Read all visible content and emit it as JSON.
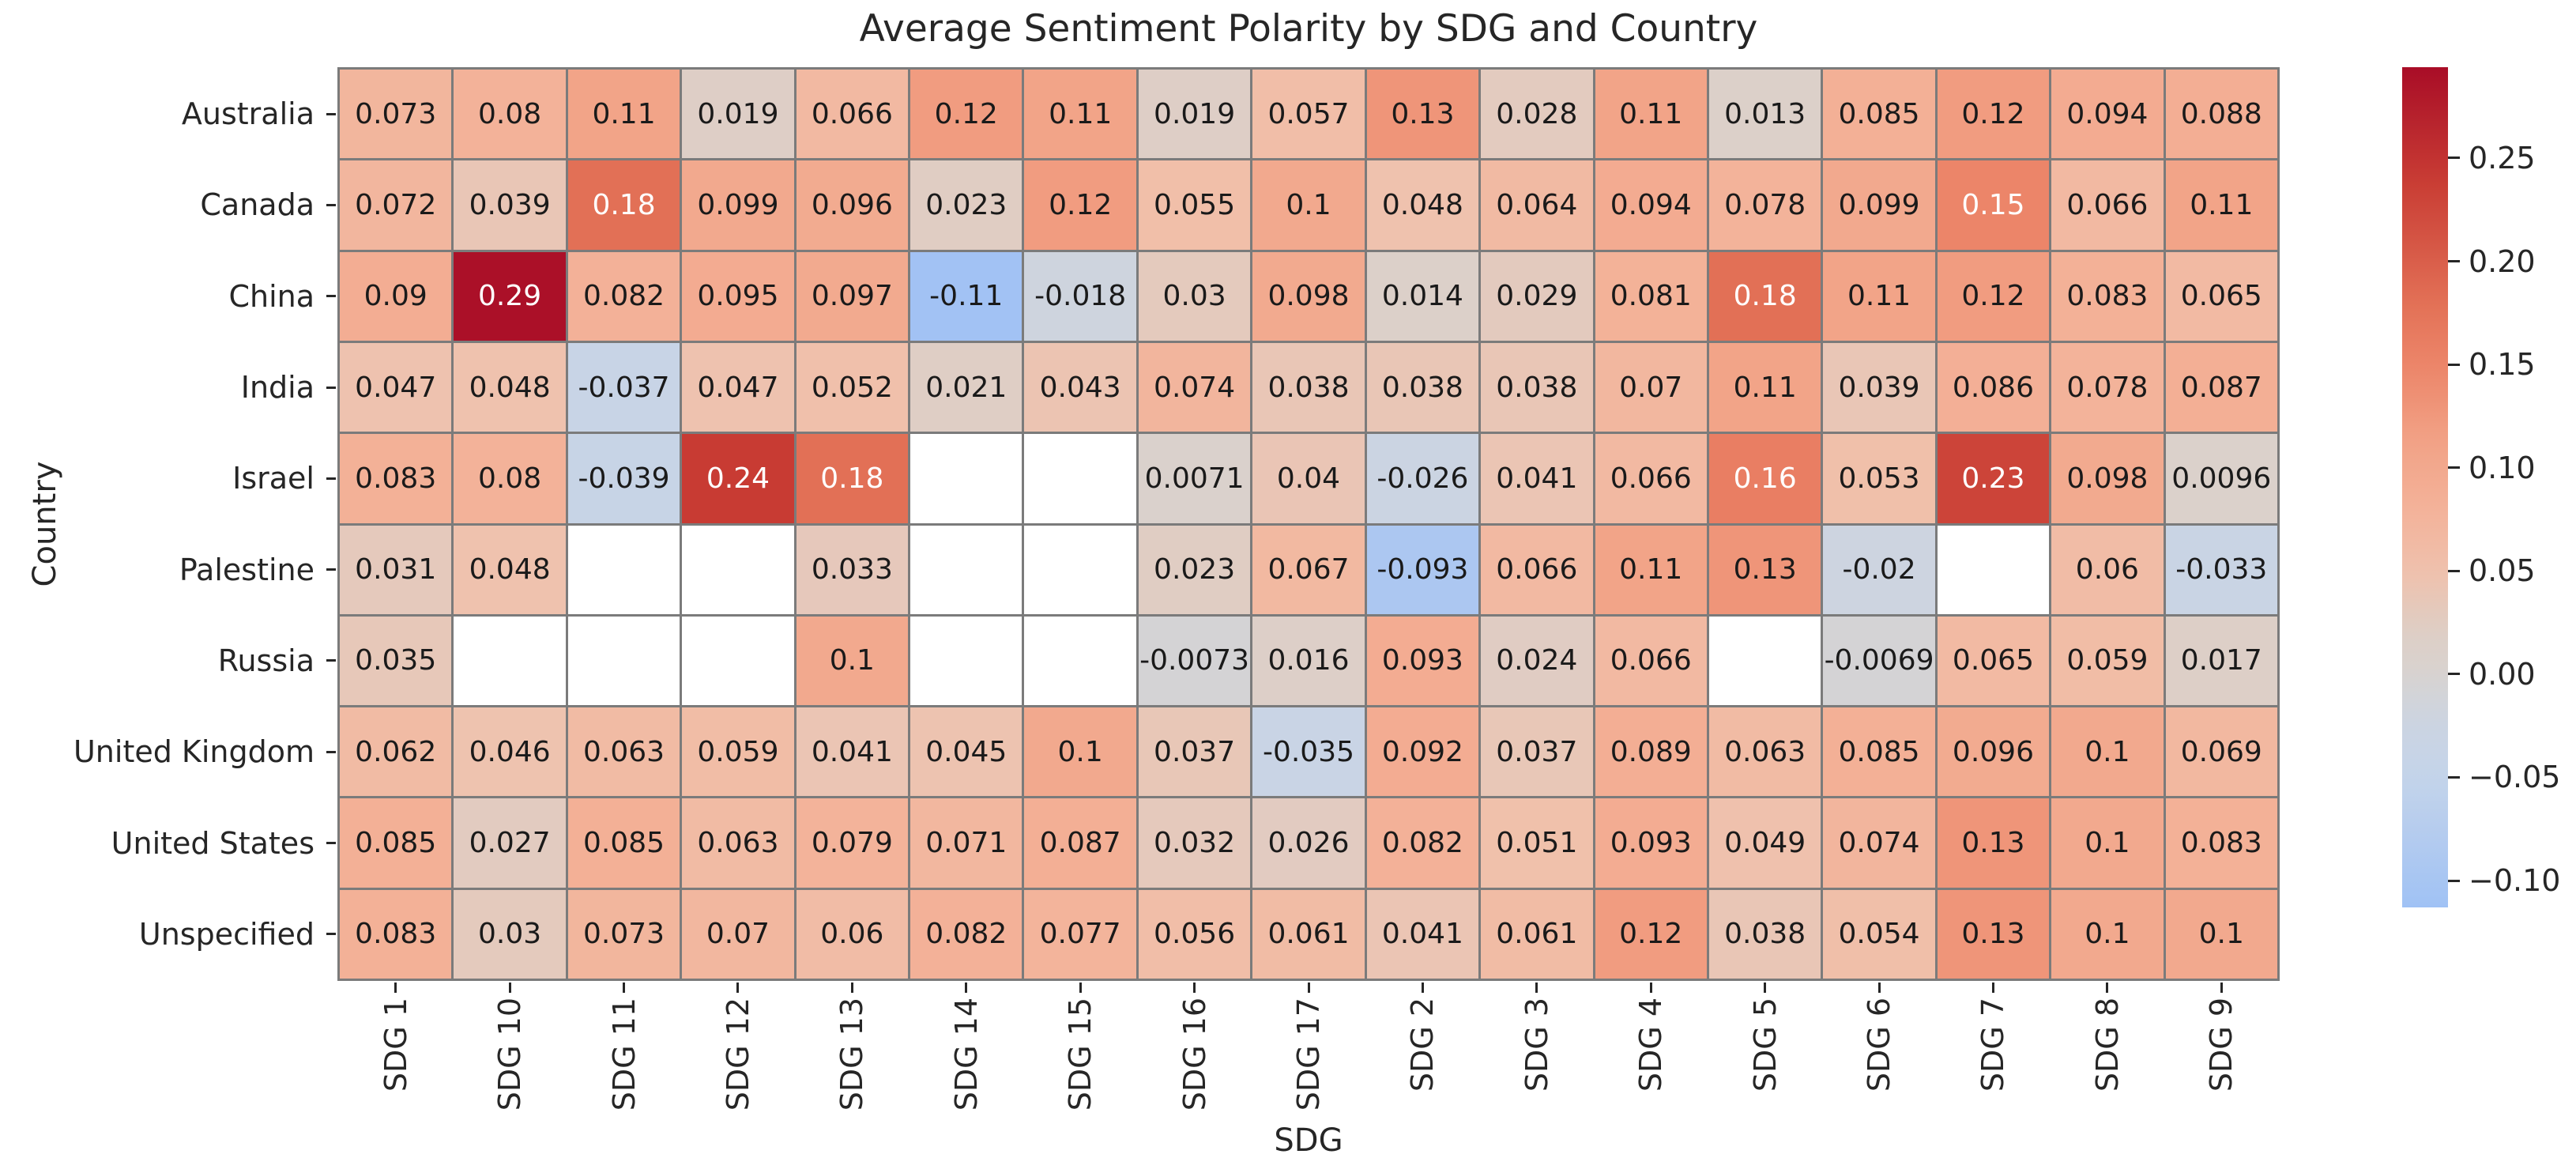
{
  "title": "Average Sentiment Polarity by SDG and Country",
  "chart_data": {
    "type": "heatmap",
    "title": "Average Sentiment Polarity by SDG and Country",
    "xlabel": "SDG",
    "ylabel": "Country",
    "legend_position": "colorbar-right",
    "grid": false,
    "x_categories": [
      "SDG 1",
      "SDG 10",
      "SDG 11",
      "SDG 12",
      "SDG 13",
      "SDG 14",
      "SDG 15",
      "SDG 16",
      "SDG 17",
      "SDG 2",
      "SDG 3",
      "SDG 4",
      "SDG 5",
      "SDG 6",
      "SDG 7",
      "SDG 8",
      "SDG 9"
    ],
    "y_categories": [
      "Australia",
      "Canada",
      "China",
      "India",
      "Israel",
      "Palestine",
      "Russia",
      "United Kingdom",
      "United States",
      "Unspecified"
    ],
    "values": [
      [
        "0.073",
        "0.08",
        "0.11",
        "0.019",
        "0.066",
        "0.12",
        "0.11",
        "0.019",
        "0.057",
        "0.13",
        "0.028",
        "0.11",
        "0.013",
        "0.085",
        "0.12",
        "0.094",
        "0.088"
      ],
      [
        "0.072",
        "0.039",
        "0.18",
        "0.099",
        "0.096",
        "0.023",
        "0.12",
        "0.055",
        "0.1",
        "0.048",
        "0.064",
        "0.094",
        "0.078",
        "0.099",
        "0.15",
        "0.066",
        "0.11"
      ],
      [
        "0.09",
        "0.29",
        "0.082",
        "0.095",
        "0.097",
        "-0.11",
        "-0.018",
        "0.03",
        "0.098",
        "0.014",
        "0.029",
        "0.081",
        "0.18",
        "0.11",
        "0.12",
        "0.083",
        "0.065"
      ],
      [
        "0.047",
        "0.048",
        "-0.037",
        "0.047",
        "0.052",
        "0.021",
        "0.043",
        "0.074",
        "0.038",
        "0.038",
        "0.038",
        "0.07",
        "0.11",
        "0.039",
        "0.086",
        "0.078",
        "0.087"
      ],
      [
        "0.083",
        "0.08",
        "-0.039",
        "0.24",
        "0.18",
        null,
        null,
        "0.0071",
        "0.04",
        "-0.026",
        "0.041",
        "0.066",
        "0.16",
        "0.053",
        "0.23",
        "0.098",
        "0.0096"
      ],
      [
        "0.031",
        "0.048",
        null,
        null,
        "0.033",
        null,
        null,
        "0.023",
        "0.067",
        "-0.093",
        "0.066",
        "0.11",
        "0.13",
        "-0.02",
        null,
        "0.06",
        "-0.033"
      ],
      [
        "0.035",
        null,
        null,
        null,
        "0.1",
        null,
        null,
        "-0.0073",
        "0.016",
        "0.093",
        "0.024",
        "0.066",
        null,
        "-0.0069",
        "0.065",
        "0.059",
        "0.017"
      ],
      [
        "0.062",
        "0.046",
        "0.063",
        "0.059",
        "0.041",
        "0.045",
        "0.1",
        "0.037",
        "-0.035",
        "0.092",
        "0.037",
        "0.089",
        "0.063",
        "0.085",
        "0.096",
        "0.1",
        "0.069"
      ],
      [
        "0.085",
        "0.027",
        "0.085",
        "0.063",
        "0.079",
        "0.071",
        "0.087",
        "0.032",
        "0.026",
        "0.082",
        "0.051",
        "0.093",
        "0.049",
        "0.074",
        "0.13",
        "0.1",
        "0.083"
      ],
      [
        "0.083",
        "0.03",
        "0.073",
        "0.07",
        "0.06",
        "0.082",
        "0.077",
        "0.056",
        "0.061",
        "0.041",
        "0.061",
        "0.12",
        "0.038",
        "0.054",
        "0.13",
        "0.1",
        "0.1"
      ]
    ],
    "colorbar": {
      "vmin": -0.113,
      "vmax": 0.294,
      "tick_values": [
        0.25,
        0.2,
        0.15,
        0.1,
        0.05,
        0.0,
        -0.05,
        -0.1
      ],
      "tick_labels": [
        "0.25",
        "0.20",
        "0.15",
        "0.10",
        "0.05",
        "0.00",
        "−0.05",
        "−0.10"
      ]
    },
    "colormap_anchors": [
      [
        -0.115,
        "#9fc1f5"
      ],
      [
        -0.05,
        "#c4d4ea"
      ],
      [
        -0.02,
        "#cdd4e0"
      ],
      [
        0.0,
        "#d8d3cf"
      ],
      [
        0.02,
        "#decec6"
      ],
      [
        0.05,
        "#f0c1ac"
      ],
      [
        0.08,
        "#f3b299"
      ],
      [
        0.11,
        "#f2a488"
      ],
      [
        0.15,
        "#ec8569"
      ],
      [
        0.18,
        "#e27056"
      ],
      [
        0.24,
        "#c83b33"
      ],
      [
        0.295,
        "#a80c27"
      ]
    ],
    "missing_color": "#ffffff",
    "grid_line_color": "#7b7b7b",
    "text_color": "#262626",
    "annotation_dark_text": "#1a1a1a",
    "annotation_light_text": "#ffffff"
  }
}
